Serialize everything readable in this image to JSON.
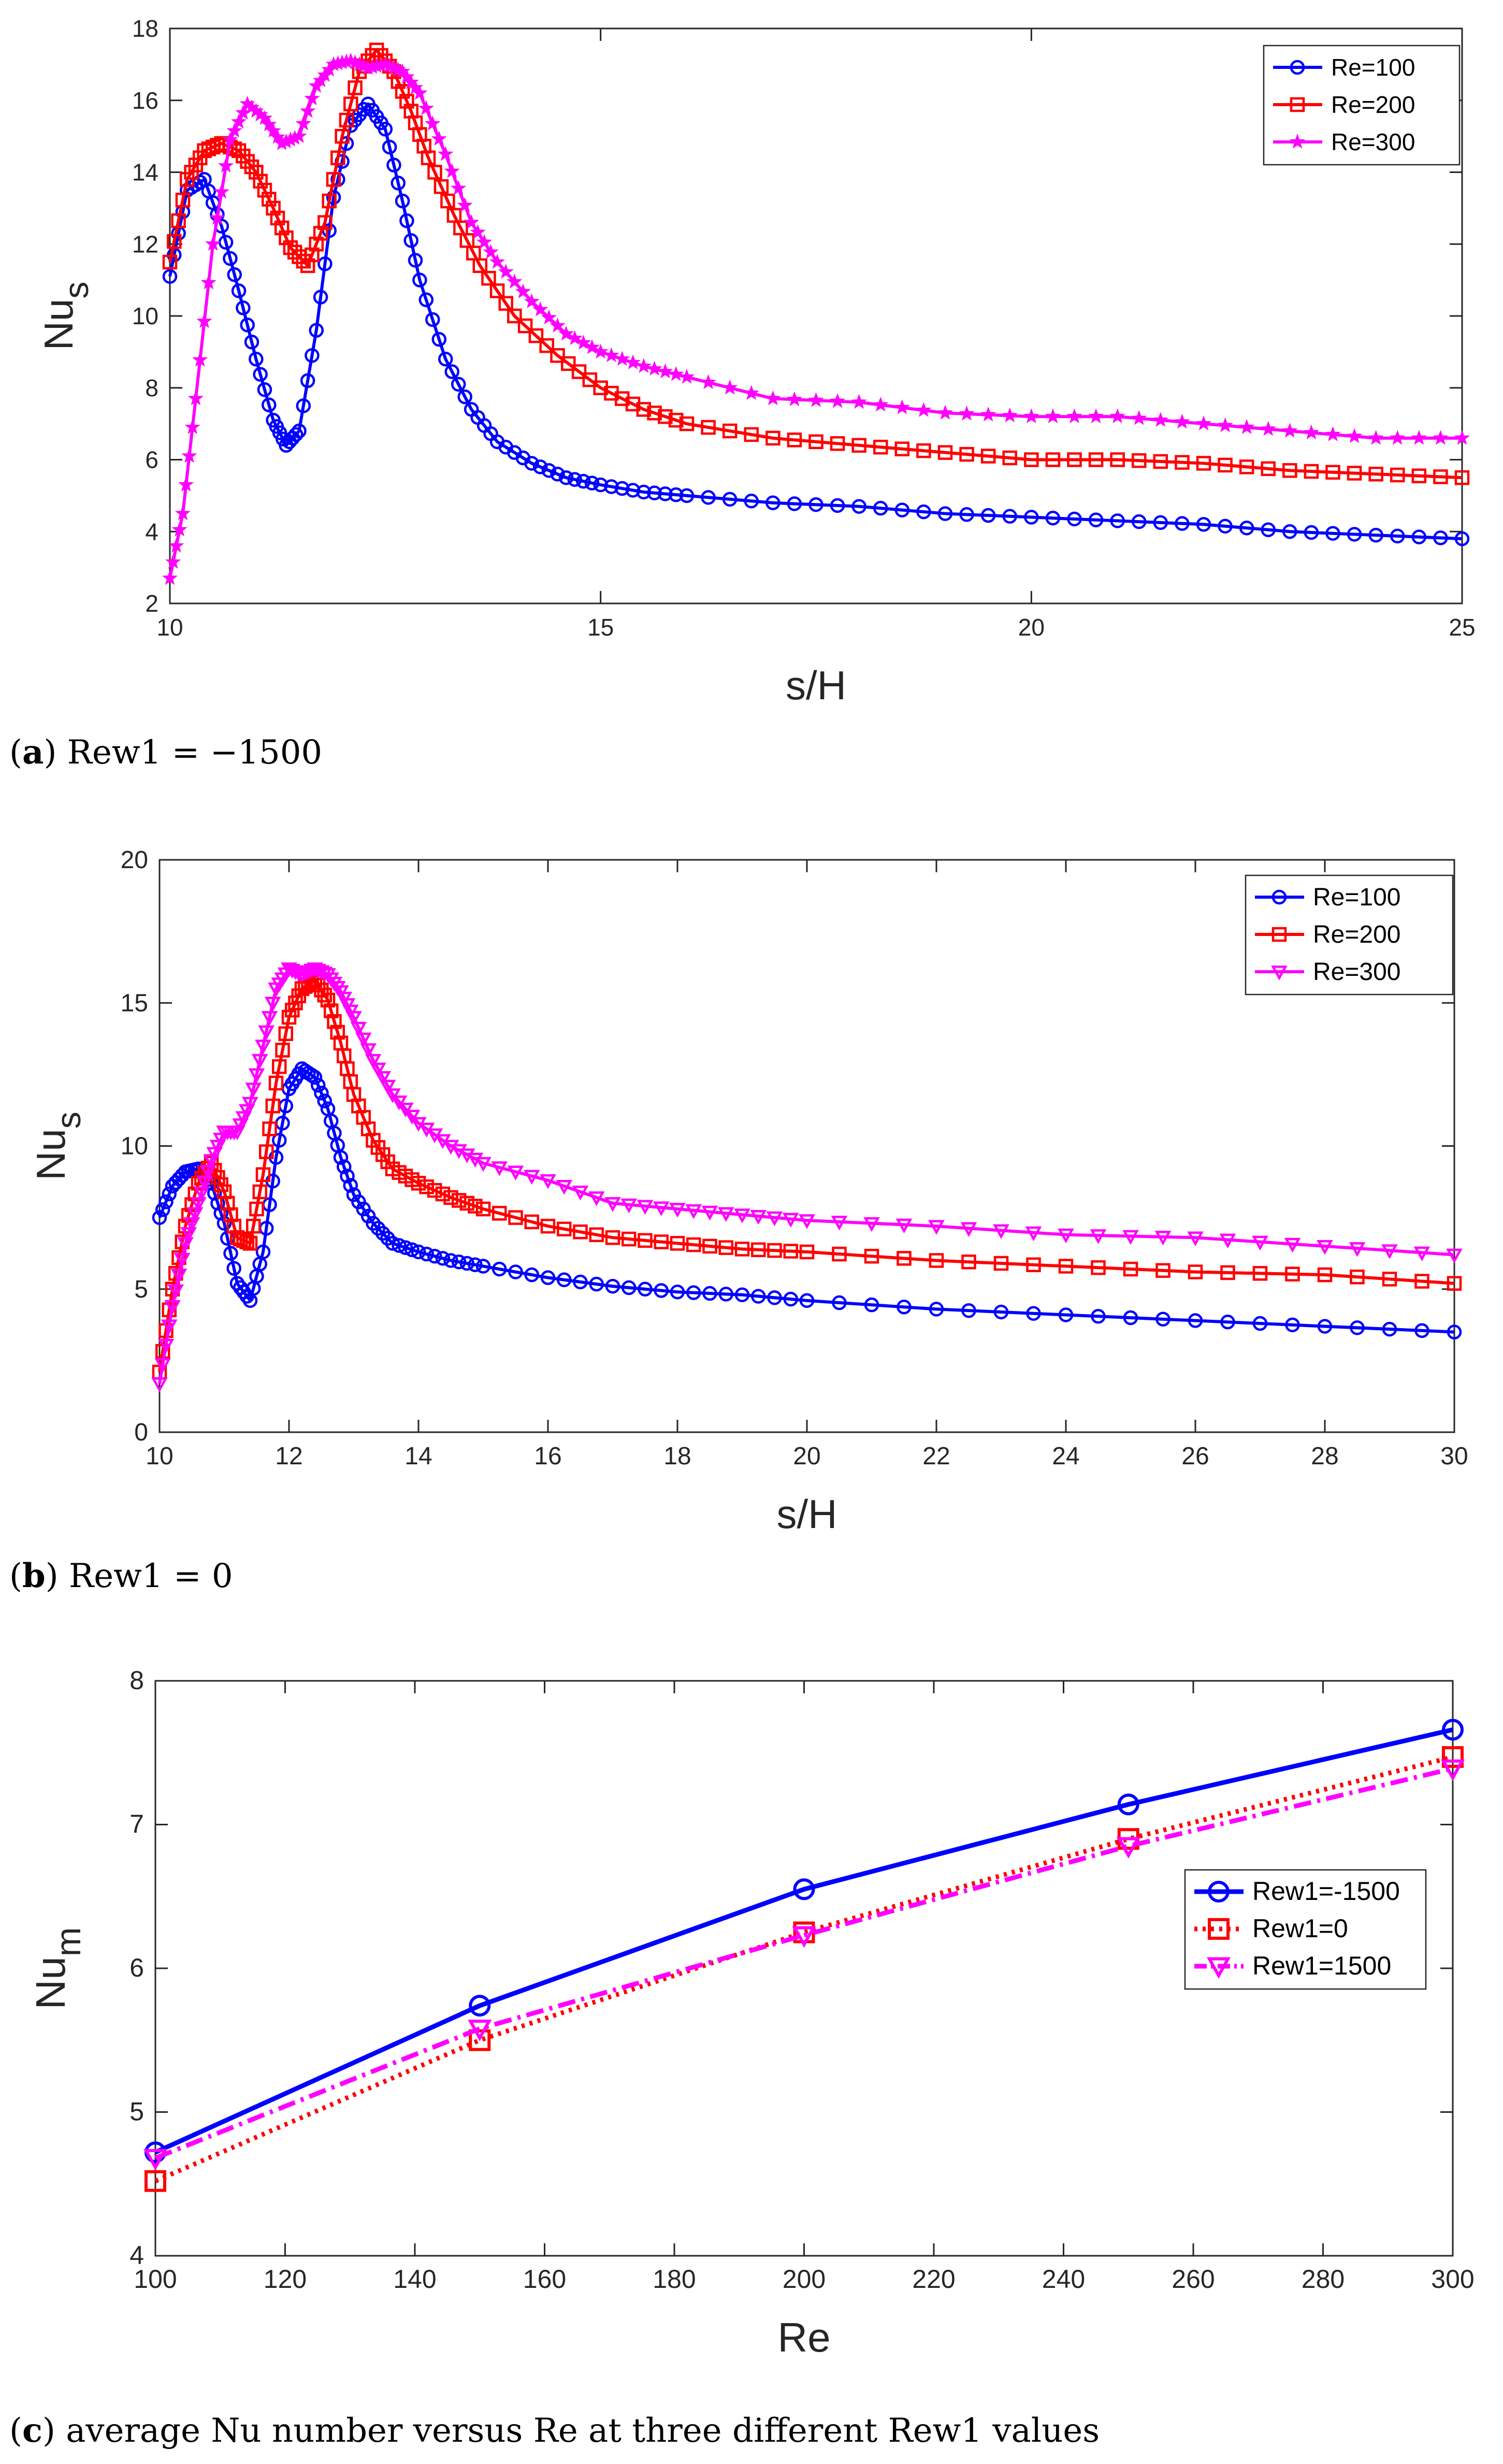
{
  "figure": {
    "captions": [
      {
        "label": "a",
        "open": "(",
        "close": ")",
        "text": " Rew1 = −1500"
      },
      {
        "label": "b",
        "open": "(",
        "close": ")",
        "text": " Rew1 = 0"
      },
      {
        "label": "c",
        "open": "(",
        "close": ")",
        "text": " average Nu number versus Re at three different Rew1 values"
      }
    ]
  },
  "chart_data": [
    {
      "type": "line",
      "title": "",
      "xlabel": "s/H",
      "ylabel": "Nu",
      "ylabel_sub": "s",
      "xlim": [
        10,
        25
      ],
      "ylim": [
        2,
        18
      ],
      "xticks": [
        10,
        15,
        20,
        25
      ],
      "yticks": [
        2,
        4,
        6,
        8,
        10,
        12,
        14,
        16,
        18
      ],
      "grid": false,
      "legend_position": "top-right",
      "series": [
        {
          "name": "Re=100",
          "color": "#0000ff",
          "marker": "circle",
          "x": [
            10,
            10.2,
            10.4,
            10.6,
            10.8,
            11.0,
            11.2,
            11.35,
            11.5,
            11.7,
            11.9,
            12.1,
            12.3,
            12.5,
            12.7,
            12.9,
            13.2,
            13.5,
            13.8,
            14.2,
            14.6,
            15.0,
            15.5,
            16,
            17,
            18,
            19,
            20,
            21,
            22,
            23,
            24,
            25
          ],
          "y": [
            11.1,
            13.5,
            13.8,
            12.5,
            10.7,
            8.8,
            7.1,
            6.4,
            6.8,
            9.6,
            13.3,
            15.3,
            15.9,
            15.2,
            13.2,
            11.0,
            8.8,
            7.4,
            6.5,
            5.9,
            5.5,
            5.3,
            5.1,
            5.0,
            4.8,
            4.7,
            4.5,
            4.4,
            4.3,
            4.2,
            4.0,
            3.9,
            3.8
          ]
        },
        {
          "name": "Re=200",
          "color": "#ff0000",
          "marker": "square",
          "x": [
            10,
            10.2,
            10.4,
            10.6,
            10.8,
            11.0,
            11.2,
            11.4,
            11.6,
            11.8,
            12.0,
            12.2,
            12.4,
            12.6,
            12.8,
            13.0,
            13.3,
            13.6,
            14.0,
            14.5,
            15.0,
            15.5,
            16,
            17,
            18,
            19,
            20,
            21,
            22,
            23,
            24,
            25
          ],
          "y": [
            11.5,
            13.8,
            14.6,
            14.8,
            14.6,
            14.0,
            13.0,
            11.9,
            11.4,
            12.6,
            15.0,
            16.8,
            17.4,
            16.8,
            15.7,
            14.4,
            12.8,
            11.4,
            10.0,
            8.9,
            8.0,
            7.4,
            7.0,
            6.6,
            6.4,
            6.2,
            6.0,
            6.0,
            5.9,
            5.7,
            5.6,
            5.5
          ]
        },
        {
          "name": "Re=300",
          "color": "#ff00ff",
          "marker": "star",
          "x": [
            10,
            10.15,
            10.3,
            10.5,
            10.7,
            10.9,
            11.1,
            11.3,
            11.5,
            11.7,
            11.9,
            12.1,
            12.3,
            12.5,
            12.7,
            12.9,
            13.2,
            13.5,
            13.8,
            14.2,
            14.6,
            15.0,
            15.5,
            16,
            17,
            18,
            19,
            20,
            21,
            22,
            23,
            24,
            25
          ],
          "y": [
            2.7,
            4.5,
            7.7,
            12.0,
            14.9,
            15.9,
            15.5,
            14.8,
            15.0,
            16.4,
            17.0,
            17.1,
            16.9,
            17.0,
            16.8,
            16.2,
            14.5,
            12.6,
            11.5,
            10.4,
            9.5,
            9.0,
            8.6,
            8.3,
            7.7,
            7.6,
            7.3,
            7.2,
            7.2,
            7.0,
            6.8,
            6.6,
            6.6
          ]
        }
      ]
    },
    {
      "type": "line",
      "title": "",
      "xlabel": "s/H",
      "ylabel": "Nu",
      "ylabel_sub": "s",
      "xlim": [
        10,
        30
      ],
      "ylim": [
        0,
        20
      ],
      "xticks": [
        10,
        12,
        14,
        16,
        18,
        20,
        22,
        24,
        26,
        28,
        30
      ],
      "yticks": [
        0,
        5,
        10,
        15,
        20
      ],
      "grid": false,
      "legend_position": "top-right",
      "series": [
        {
          "name": "Re=100",
          "color": "#0000ff",
          "marker": "circle",
          "x": [
            10,
            10.2,
            10.4,
            10.6,
            10.8,
            11.0,
            11.2,
            11.4,
            11.6,
            11.8,
            12.0,
            12.2,
            12.4,
            12.6,
            12.8,
            13.0,
            13.3,
            13.6,
            14.0,
            14.5,
            15.0,
            16,
            17,
            18,
            19,
            20,
            22,
            24,
            26,
            28,
            30
          ],
          "y": [
            7.5,
            8.6,
            9.1,
            9.2,
            8.7,
            7.3,
            5.2,
            4.6,
            6.3,
            9.6,
            12.0,
            12.7,
            12.4,
            11.3,
            9.6,
            8.3,
            7.3,
            6.6,
            6.3,
            6.0,
            5.8,
            5.4,
            5.1,
            4.9,
            4.8,
            4.6,
            4.3,
            4.1,
            3.9,
            3.7,
            3.5
          ]
        },
        {
          "name": "Re=200",
          "color": "#ff0000",
          "marker": "square",
          "x": [
            10,
            10.2,
            10.4,
            10.6,
            10.8,
            11.0,
            11.2,
            11.4,
            11.6,
            11.8,
            12.0,
            12.2,
            12.4,
            12.6,
            12.8,
            13.0,
            13.3,
            13.6,
            14.0,
            14.5,
            15.0,
            16,
            17,
            18,
            19,
            20,
            22,
            24,
            26,
            28,
            30
          ],
          "y": [
            2.1,
            5.0,
            7.2,
            8.7,
            9.4,
            8.4,
            6.8,
            6.6,
            9.0,
            12.2,
            14.5,
            15.5,
            15.8,
            15.1,
            13.6,
            11.8,
            10.2,
            9.2,
            8.7,
            8.2,
            7.8,
            7.2,
            6.8,
            6.6,
            6.4,
            6.3,
            6.0,
            5.8,
            5.6,
            5.5,
            5.2
          ]
        },
        {
          "name": "Re=300",
          "color": "#ff00ff",
          "marker": "triangle-down",
          "x": [
            10,
            10.2,
            10.4,
            10.6,
            10.8,
            11.0,
            11.2,
            11.4,
            11.6,
            11.8,
            12.0,
            12.2,
            12.4,
            12.6,
            12.8,
            13.0,
            13.3,
            13.6,
            14.0,
            14.5,
            15.0,
            16,
            17,
            18,
            19,
            20,
            22,
            24,
            26,
            28,
            30
          ],
          "y": [
            1.7,
            4.4,
            6.6,
            8.0,
            9.5,
            10.5,
            10.5,
            11.5,
            13.5,
            15.5,
            16.2,
            16.0,
            16.2,
            16.0,
            15.4,
            14.5,
            13.0,
            11.8,
            10.8,
            10.0,
            9.4,
            8.8,
            8.0,
            7.8,
            7.6,
            7.4,
            7.2,
            6.9,
            6.8,
            6.5,
            6.2
          ]
        }
      ]
    },
    {
      "type": "line",
      "title": "",
      "xlabel": "Re",
      "ylabel": "Nu",
      "ylabel_sub": "m",
      "xlim": [
        100,
        300
      ],
      "ylim": [
        4,
        8
      ],
      "xticks": [
        100,
        120,
        140,
        160,
        180,
        200,
        220,
        240,
        260,
        280,
        300
      ],
      "yticks": [
        4,
        5,
        6,
        7,
        8
      ],
      "grid": false,
      "legend_position": "center-right",
      "categories": [
        100,
        150,
        200,
        250,
        300
      ],
      "series": [
        {
          "name": "Rew1=-1500",
          "color": "#0000ff",
          "marker": "circle",
          "line_style": "solid",
          "values": [
            4.72,
            5.74,
            6.55,
            7.14,
            7.66
          ]
        },
        {
          "name": "Rew1=0",
          "color": "#ff0000",
          "marker": "square",
          "line_style": "dotted",
          "values": [
            4.52,
            5.5,
            6.25,
            6.9,
            7.47
          ]
        },
        {
          "name": "Rew1=1500",
          "color": "#ff00ff",
          "marker": "triangle-down",
          "line_style": "dashdot",
          "values": [
            4.68,
            5.58,
            6.23,
            6.85,
            7.39
          ]
        }
      ]
    }
  ]
}
